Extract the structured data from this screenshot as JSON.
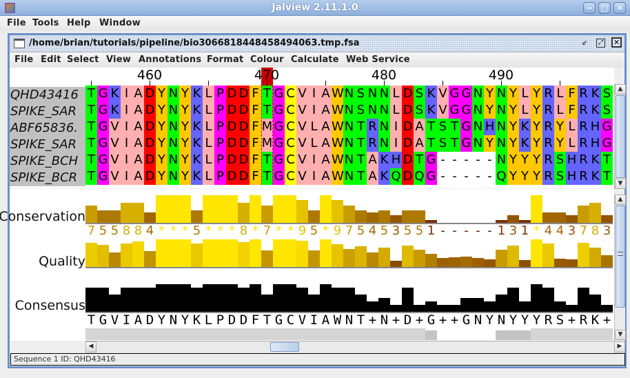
{
  "window": {
    "title": "Jalview 2.11.1.0",
    "buttons": [
      "minimize",
      "maximize",
      "close"
    ]
  },
  "main_menu": [
    "File",
    "Tools",
    "Help",
    "Window"
  ],
  "alignment_window": {
    "title": "/home/brian/tutorials/pipeline/bio3066818448458494063.tmp.fsa",
    "menu": [
      "File",
      "Edit",
      "Select",
      "View",
      "Annotations",
      "Format",
      "Colour",
      "Calculate",
      "Web Service"
    ]
  },
  "ruler": {
    "start": 455,
    "labels": [
      "460",
      "470",
      "480",
      "490"
    ],
    "selected_column": 470,
    "selection_color": "#cc0000"
  },
  "sequences": [
    {
      "id": "QHD43416",
      "seq": "TGKIADYNYKLPDDFTGCVIAWNSNNLDSKVGGNYNYLYRLFRKS"
    },
    {
      "id": "SPIKE_SAR",
      "seq": "TGKIADYNYKLPDDFTGCVIAWNSNNLDSKVGGNYNYLYRLFRKS"
    },
    {
      "id": "ABF65836.",
      "seq": "TGVIADYNYKLPDDFMGCVLAWNTRNIDATSTGNHNYKYRYLRHG"
    },
    {
      "id": "SPIKE_SAR",
      "seq": "TGVIADYNYKLPDDFMGCVLAWNTRNIDATSTGNYNYKYRYLRHG"
    },
    {
      "id": "SPIKE_BCH",
      "seq": "TGVIADYNYKLPDDFTGCVIAWNTAKHDTG-----NYYYRSHRKT"
    },
    {
      "id": "SPIKE_BCR",
      "seq": "TGVIADYNYKLPDDFTGCVIAWNTAKQDQG-----QYYYRSHRKT"
    }
  ],
  "colour_scheme": {
    "ILVAM": "#ffafaf",
    "FWY": "#ffc800",
    "KRH": "#6464ff",
    "DE": "#ff0000",
    "STNQ": "#00ff00",
    "PG": "#ff00ff",
    "C": "#ffff00"
  },
  "annotations": {
    "conservation": {
      "label": "Conservation",
      "values": [
        "7",
        "5",
        "5",
        "8",
        "8",
        "4",
        "*",
        "*",
        "*",
        "5",
        "*",
        "*",
        "*",
        "8",
        "*",
        "7",
        "*",
        "*",
        "9",
        "5",
        "*",
        "9",
        "7",
        "5",
        "4",
        "5",
        "3",
        "5",
        "5",
        "1",
        "-",
        "-",
        "-",
        "-",
        "-",
        "1",
        "3",
        "1",
        "*",
        "4",
        "4",
        "3",
        "7",
        "8",
        "3"
      ]
    },
    "quality": {
      "label": "Quality",
      "values": [
        87,
        80,
        53,
        85,
        93,
        58,
        100,
        100,
        100,
        85,
        100,
        100,
        100,
        90,
        100,
        60,
        100,
        100,
        95,
        60,
        100,
        83,
        65,
        75,
        53,
        70,
        23,
        78,
        63,
        48,
        33,
        35,
        38,
        33,
        28,
        63,
        78,
        25,
        100,
        85,
        30,
        28,
        88,
        70,
        43
      ]
    },
    "consensus": {
      "label": "Consensus",
      "values": [
        87.5,
        87.5,
        62.5,
        87.5,
        87.5,
        87.5,
        100,
        100,
        100,
        87.5,
        100,
        100,
        100,
        87.5,
        100,
        62.5,
        100,
        100,
        87.5,
        62.5,
        100,
        87.5,
        87.5,
        62.5,
        37.5,
        50,
        25,
        87.5,
        25,
        37.5,
        25,
        25,
        50,
        50,
        37.5,
        62.5,
        87.5,
        37.5,
        100,
        87.5,
        37.5,
        25,
        87.5,
        62.5,
        25
      ],
      "sequence": "TGVIADYNYKLPDDFTGCVIAWNT+N+D+G++GNYNYYYRS+RK+"
    },
    "occupancy": [
      1,
      1,
      1,
      1,
      1,
      1,
      1,
      1,
      1,
      1,
      1,
      1,
      1,
      1,
      1,
      1,
      1,
      1,
      1,
      1,
      1,
      1,
      1,
      1,
      1,
      1,
      1,
      1,
      1,
      0.7,
      0,
      0,
      0,
      0,
      0,
      0.7,
      0.7,
      0.7,
      1,
      1,
      1,
      1,
      1,
      1,
      1
    ]
  },
  "status": "Sequence 1 ID: QHD43416"
}
